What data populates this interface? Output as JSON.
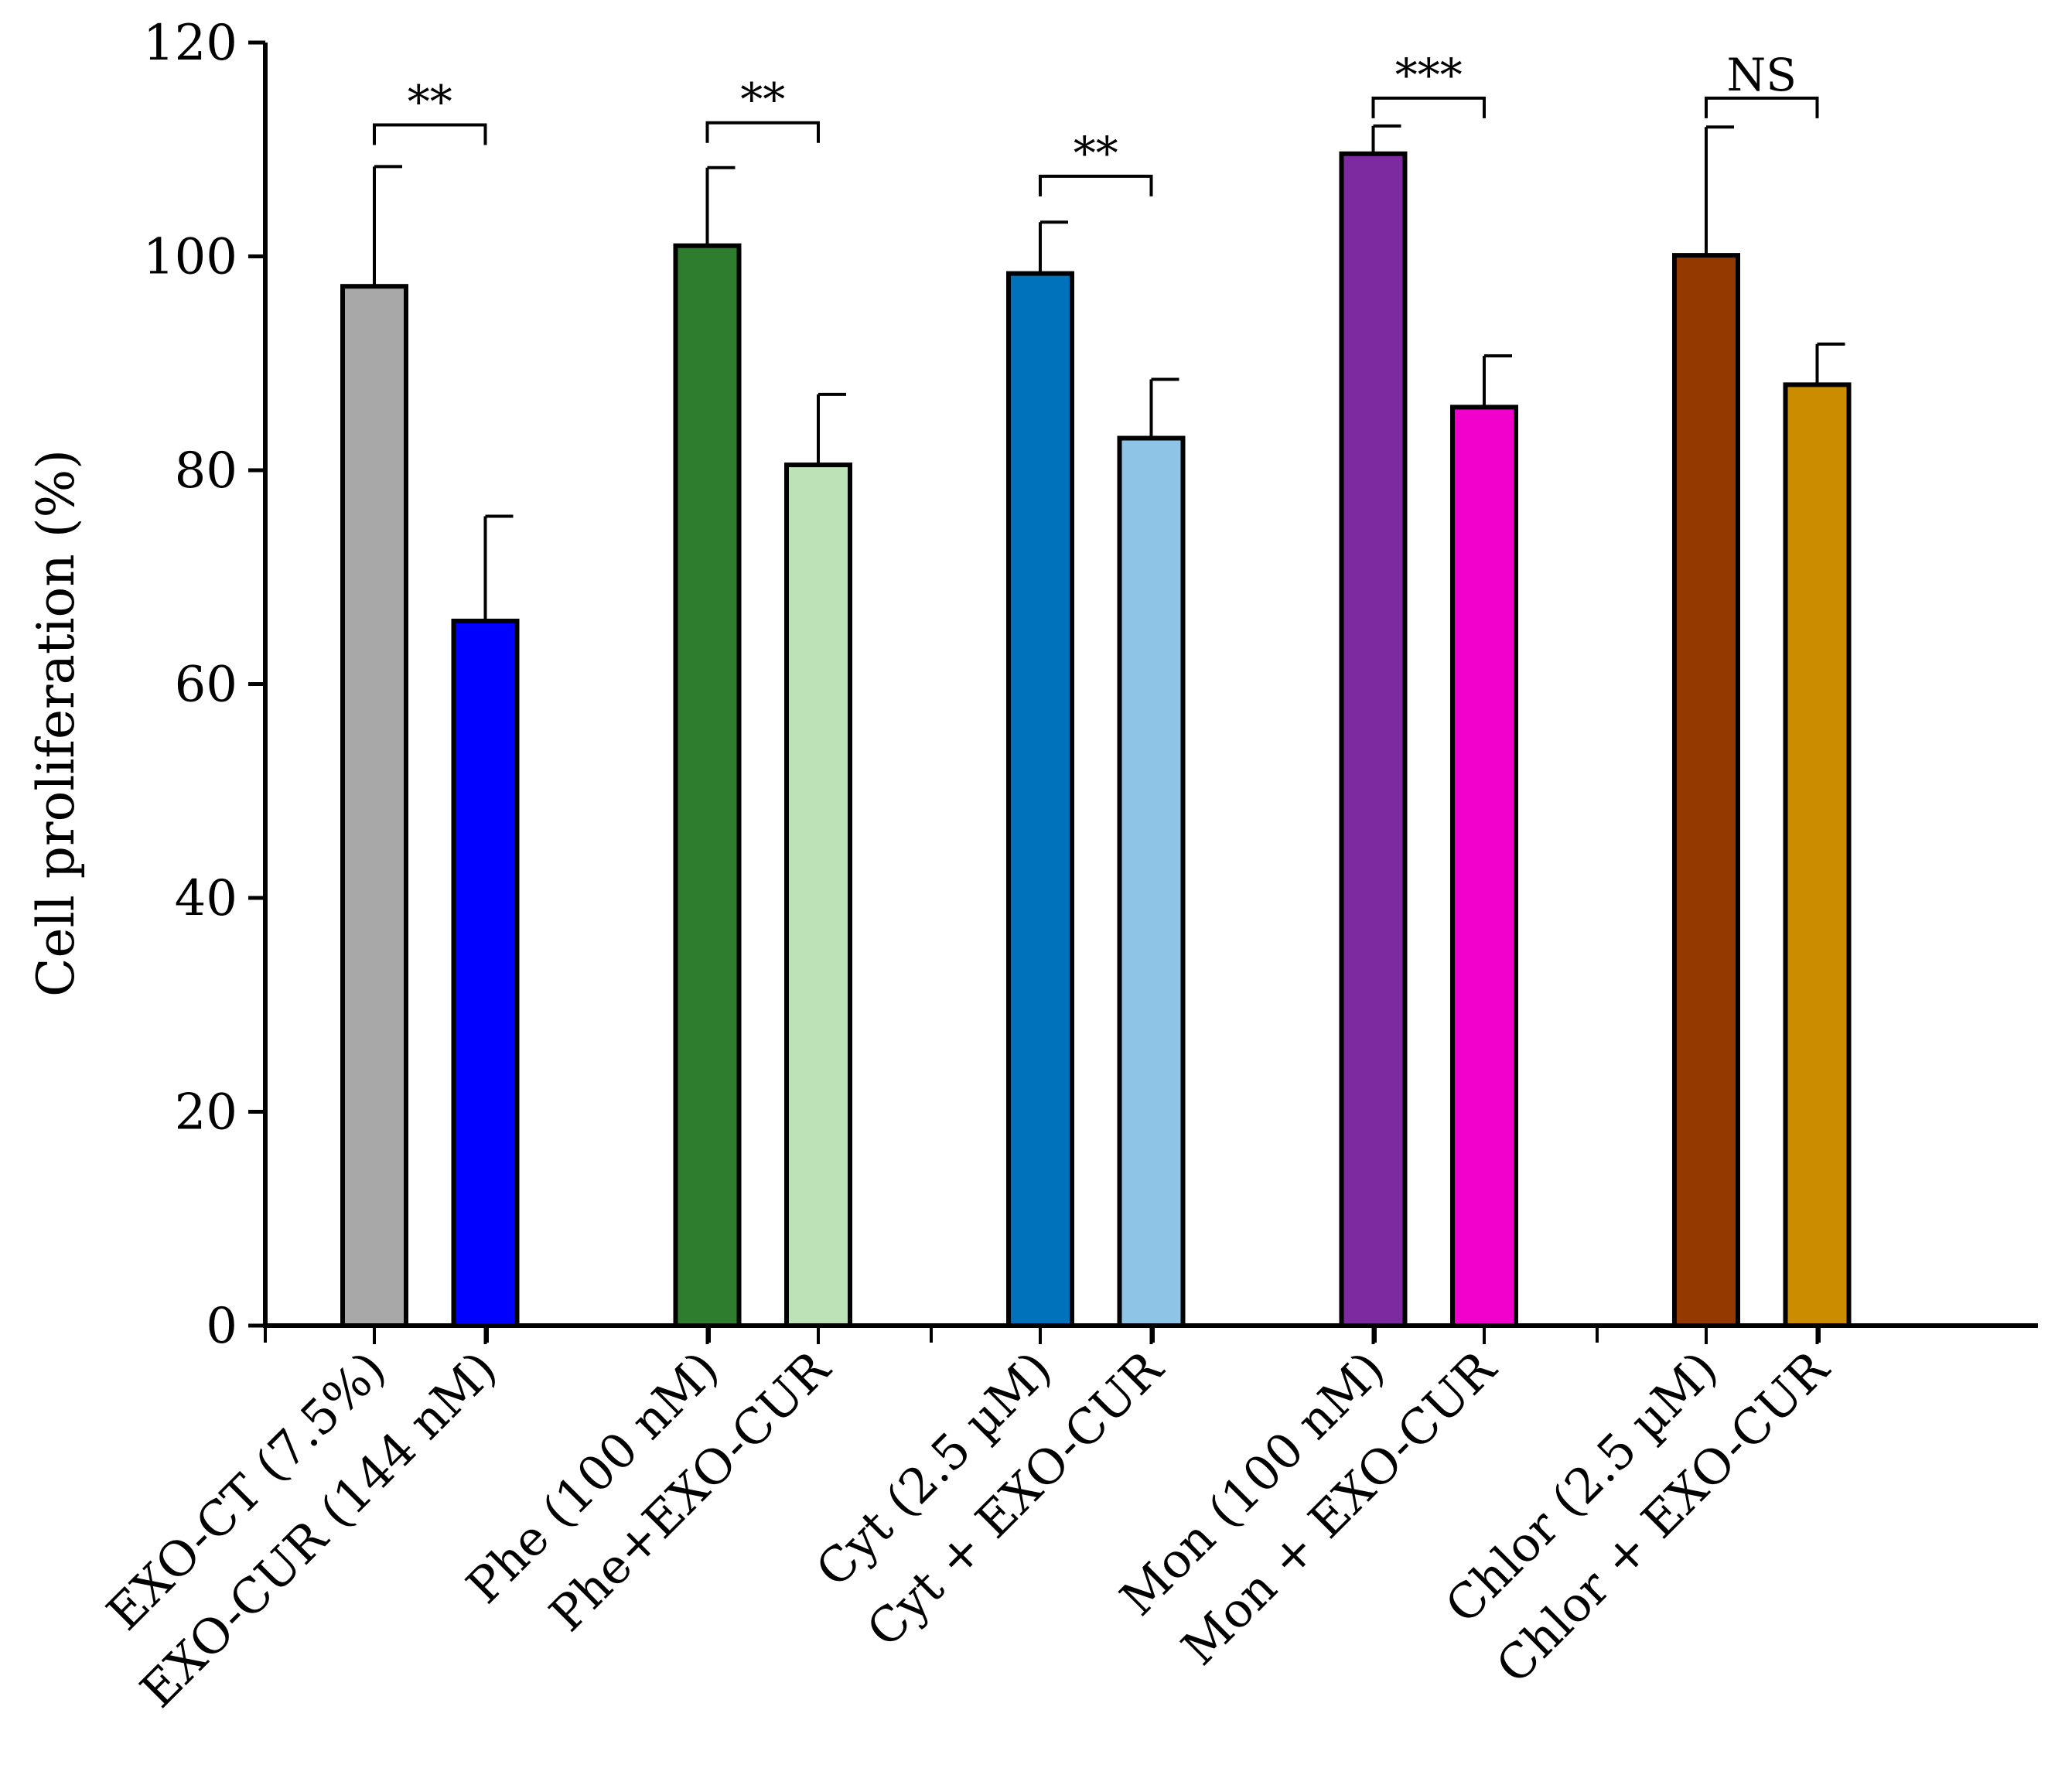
{
  "chart_data": {
    "type": "bar",
    "title": "",
    "xlabel": "",
    "ylabel": "Cell proliferation (%)",
    "ylim": [
      0,
      120
    ],
    "yticks": [
      "0",
      "20",
      "40",
      "60",
      "80",
      "100",
      "120"
    ],
    "grid": false,
    "categories": [
      "EXO-CT (7.5%)",
      "EXO-CUR (144 nM)",
      "Phe (100 nM)",
      "Phe+EXO-CUR",
      "Cyt (2.5 µM)",
      "Cyt + EXO-CUR",
      "Mon (100 nM)",
      "Mon + EXO-CUR",
      "Chlor (2.5 µM)",
      "Chlor + EXO-CUR"
    ],
    "values": [
      97.2,
      65.9,
      101.0,
      80.5,
      98.4,
      83.0,
      109.6,
      85.9,
      100.1,
      88.0
    ],
    "errors": [
      11.2,
      9.8,
      7.3,
      6.6,
      4.8,
      5.5,
      2.6,
      4.8,
      12.0,
      3.8
    ],
    "colors": [
      "#a8a8a8",
      "#0000ff",
      "#2e7d2e",
      "#bde2b7",
      "#0072bb",
      "#8ec4e6",
      "#7d2aa1",
      "#f200cc",
      "#943a00",
      "#cc8c00"
    ],
    "significance": [
      {
        "pair": [
          0,
          1
        ],
        "label": "**",
        "level": 112.3
      },
      {
        "pair": [
          2,
          3
        ],
        "label": "**",
        "level": 112.5
      },
      {
        "pair": [
          4,
          5
        ],
        "label": "**",
        "level": 107.5
      },
      {
        "pair": [
          6,
          7
        ],
        "label": "***",
        "level": 114.8
      },
      {
        "pair": [
          8,
          9
        ],
        "label": "NS",
        "level": 114.8
      }
    ]
  }
}
